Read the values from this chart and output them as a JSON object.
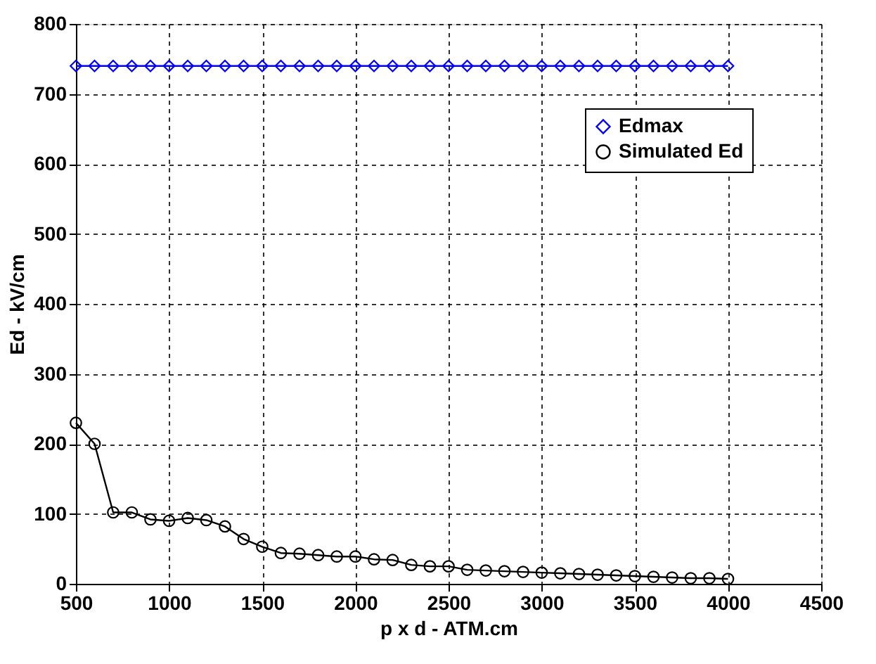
{
  "chart_data": {
    "type": "line",
    "xlabel": "p x d - ATM.cm",
    "ylabel": "Ed - kV/cm",
    "x": [
      500,
      600,
      700,
      800,
      900,
      1000,
      1100,
      1200,
      1300,
      1400,
      1500,
      1600,
      1700,
      1800,
      1900,
      2000,
      2100,
      2200,
      2300,
      2400,
      2500,
      2600,
      2700,
      2800,
      2900,
      3000,
      3100,
      3200,
      3300,
      3400,
      3500,
      3600,
      3700,
      3800,
      3900,
      4000
    ],
    "series": [
      {
        "name": "Edmax",
        "color": "#0000ff",
        "marker": "diamond",
        "values": [
          740,
          740,
          740,
          740,
          740,
          740,
          740,
          740,
          740,
          740,
          740,
          740,
          740,
          740,
          740,
          740,
          740,
          740,
          740,
          740,
          740,
          740,
          740,
          740,
          740,
          740,
          740,
          740,
          740,
          740,
          740,
          740,
          740,
          740,
          740,
          740
        ]
      },
      {
        "name": "Simulated Ed",
        "color": "#000000",
        "marker": "circle",
        "values": [
          230,
          200,
          102,
          102,
          92,
          90,
          94,
          91,
          82,
          64,
          53,
          44,
          43,
          41,
          39,
          39,
          35,
          34,
          27,
          25,
          25,
          20,
          19,
          18,
          17,
          16,
          15,
          14,
          13,
          12,
          11,
          10,
          9,
          8,
          8,
          7
        ]
      }
    ],
    "xlim": [
      500,
      4500
    ],
    "xticks": [
      500,
      1000,
      1500,
      2000,
      2500,
      3000,
      3500,
      4000,
      4500
    ],
    "ylim": [
      0,
      800
    ],
    "yticks": [
      0,
      100,
      200,
      300,
      400,
      500,
      600,
      700,
      800
    ],
    "grid": true,
    "legend": "top right",
    "line_style": "solid"
  }
}
